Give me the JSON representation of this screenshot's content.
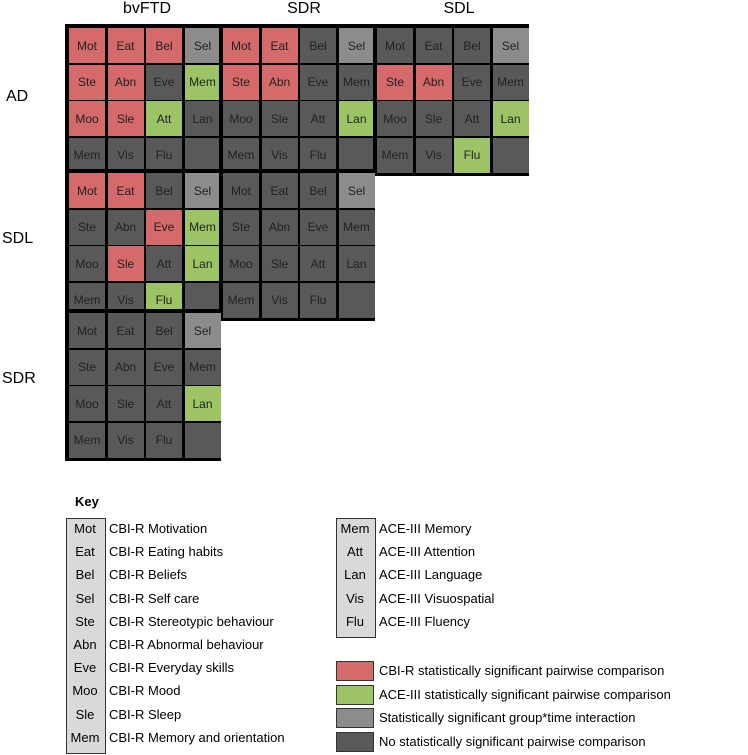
{
  "columns": [
    "bvFTD",
    "SDR",
    "SDL"
  ],
  "rows": [
    "AD",
    "SDL",
    "SDR"
  ],
  "colors": {
    "red": "#d46a6a",
    "green": "#9cc464",
    "light": "#8c8c8c",
    "dark": "#595959"
  },
  "blocks": [
    {
      "id": "AD-bvFTD",
      "row": 0,
      "col": 0,
      "cells": [
        [
          "Mot",
          "red"
        ],
        [
          "Eat",
          "red"
        ],
        [
          "Bel",
          "red"
        ],
        [
          "Sel",
          "light"
        ],
        [
          "Ste",
          "red"
        ],
        [
          "Abn",
          "red"
        ],
        [
          "Eve",
          "dark"
        ],
        [
          "Mem",
          "green"
        ],
        [
          "Moo",
          "red"
        ],
        [
          "Sle",
          "red"
        ],
        [
          "Att",
          "green"
        ],
        [
          "Lan",
          "dark"
        ],
        [
          "Mem",
          "dark"
        ],
        [
          "Vis",
          "dark"
        ],
        [
          "Flu",
          "dark"
        ],
        [
          "",
          "dark"
        ]
      ]
    },
    {
      "id": "AD-SDR",
      "row": 0,
      "col": 1,
      "cells": [
        [
          "Mot",
          "red"
        ],
        [
          "Eat",
          "red"
        ],
        [
          "Bel",
          "dark"
        ],
        [
          "Sel",
          "light"
        ],
        [
          "Ste",
          "red"
        ],
        [
          "Abn",
          "red"
        ],
        [
          "Eve",
          "dark"
        ],
        [
          "Mem",
          "dark"
        ],
        [
          "Moo",
          "dark"
        ],
        [
          "Sle",
          "dark"
        ],
        [
          "Att",
          "dark"
        ],
        [
          "Lan",
          "green"
        ],
        [
          "Mem",
          "dark"
        ],
        [
          "Vis",
          "dark"
        ],
        [
          "Flu",
          "dark"
        ],
        [
          "",
          "dark"
        ]
      ]
    },
    {
      "id": "AD-SDL",
      "row": 0,
      "col": 2,
      "cells": [
        [
          "Mot",
          "dark"
        ],
        [
          "Eat",
          "dark"
        ],
        [
          "Bel",
          "dark"
        ],
        [
          "Sel",
          "light"
        ],
        [
          "Ste",
          "red"
        ],
        [
          "Abn",
          "red"
        ],
        [
          "Eve",
          "dark"
        ],
        [
          "Mem",
          "dark"
        ],
        [
          "Moo",
          "dark"
        ],
        [
          "Sle",
          "dark"
        ],
        [
          "Att",
          "dark"
        ],
        [
          "Lan",
          "green"
        ],
        [
          "Mem",
          "dark"
        ],
        [
          "Vis",
          "dark"
        ],
        [
          "Flu",
          "green"
        ],
        [
          "",
          "dark"
        ]
      ]
    },
    {
      "id": "SDL-bvFTD",
      "row": 1,
      "col": 0,
      "cells": [
        [
          "Mot",
          "red"
        ],
        [
          "Eat",
          "red"
        ],
        [
          "Bel",
          "dark"
        ],
        [
          "Sel",
          "light"
        ],
        [
          "Ste",
          "dark"
        ],
        [
          "Abn",
          "dark"
        ],
        [
          "Eve",
          "red"
        ],
        [
          "Mem",
          "green"
        ],
        [
          "Moo",
          "dark"
        ],
        [
          "Sle",
          "red"
        ],
        [
          "Att",
          "dark"
        ],
        [
          "Lan",
          "green"
        ],
        [
          "Mem",
          "dark"
        ],
        [
          "Vis",
          "dark"
        ],
        [
          "Flu",
          "green"
        ],
        [
          "",
          "dark"
        ]
      ]
    },
    {
      "id": "SDL-SDR",
      "row": 1,
      "col": 1,
      "cells": [
        [
          "Mot",
          "dark"
        ],
        [
          "Eat",
          "dark"
        ],
        [
          "Bel",
          "dark"
        ],
        [
          "Sel",
          "light"
        ],
        [
          "Ste",
          "dark"
        ],
        [
          "Abn",
          "dark"
        ],
        [
          "Eve",
          "dark"
        ],
        [
          "Mem",
          "dark"
        ],
        [
          "Moo",
          "dark"
        ],
        [
          "Sle",
          "dark"
        ],
        [
          "Att",
          "dark"
        ],
        [
          "Lan",
          "dark"
        ],
        [
          "Mem",
          "dark"
        ],
        [
          "Vis",
          "dark"
        ],
        [
          "Flu",
          "dark"
        ],
        [
          "",
          "dark"
        ]
      ]
    },
    {
      "id": "SDR-bvFTD",
      "row": 2,
      "col": 0,
      "cells": [
        [
          "Mot",
          "dark"
        ],
        [
          "Eat",
          "dark"
        ],
        [
          "Bel",
          "dark"
        ],
        [
          "Sel",
          "light"
        ],
        [
          "Ste",
          "dark"
        ],
        [
          "Abn",
          "dark"
        ],
        [
          "Eve",
          "dark"
        ],
        [
          "Mem",
          "dark"
        ],
        [
          "Moo",
          "dark"
        ],
        [
          "Sle",
          "dark"
        ],
        [
          "Att",
          "dark"
        ],
        [
          "Lan",
          "green"
        ],
        [
          "Mem",
          "dark"
        ],
        [
          "Vis",
          "dark"
        ],
        [
          "Flu",
          "dark"
        ],
        [
          "",
          "dark"
        ]
      ]
    }
  ],
  "key": {
    "title": "Key",
    "cbir": [
      [
        "Mot",
        "CBI-R Motivation"
      ],
      [
        "Eat",
        "CBI-R Eating habits"
      ],
      [
        "Bel",
        "CBI-R Beliefs"
      ],
      [
        "Sel",
        "CBI-R Self care"
      ],
      [
        "Ste",
        "CBI-R Stereotypic behaviour"
      ],
      [
        "Abn",
        "CBI-R Abnormal behaviour"
      ],
      [
        "Eve",
        "CBI-R Everyday skills"
      ],
      [
        "Moo",
        "CBI-R Mood"
      ],
      [
        "Sle",
        "CBI-R Sleep"
      ],
      [
        "Mem",
        "CBI-R Memory and orientation"
      ]
    ],
    "ace": [
      [
        "Mem",
        "ACE-III Memory"
      ],
      [
        "Att",
        "ACE-III Attention"
      ],
      [
        "Lan",
        "ACE-III Language"
      ],
      [
        "Vis",
        "ACE-III Visuospatial"
      ],
      [
        "Flu",
        "ACE-III Fluency"
      ]
    ],
    "legend": [
      [
        "red",
        "CBI-R statistically significant pairwise comparison"
      ],
      [
        "green",
        "ACE-III statistically significant pairwise comparison"
      ],
      [
        "light",
        "Statistically significant group*time interaction"
      ],
      [
        "dark",
        "No statistically significant pairwise comparison"
      ]
    ]
  }
}
